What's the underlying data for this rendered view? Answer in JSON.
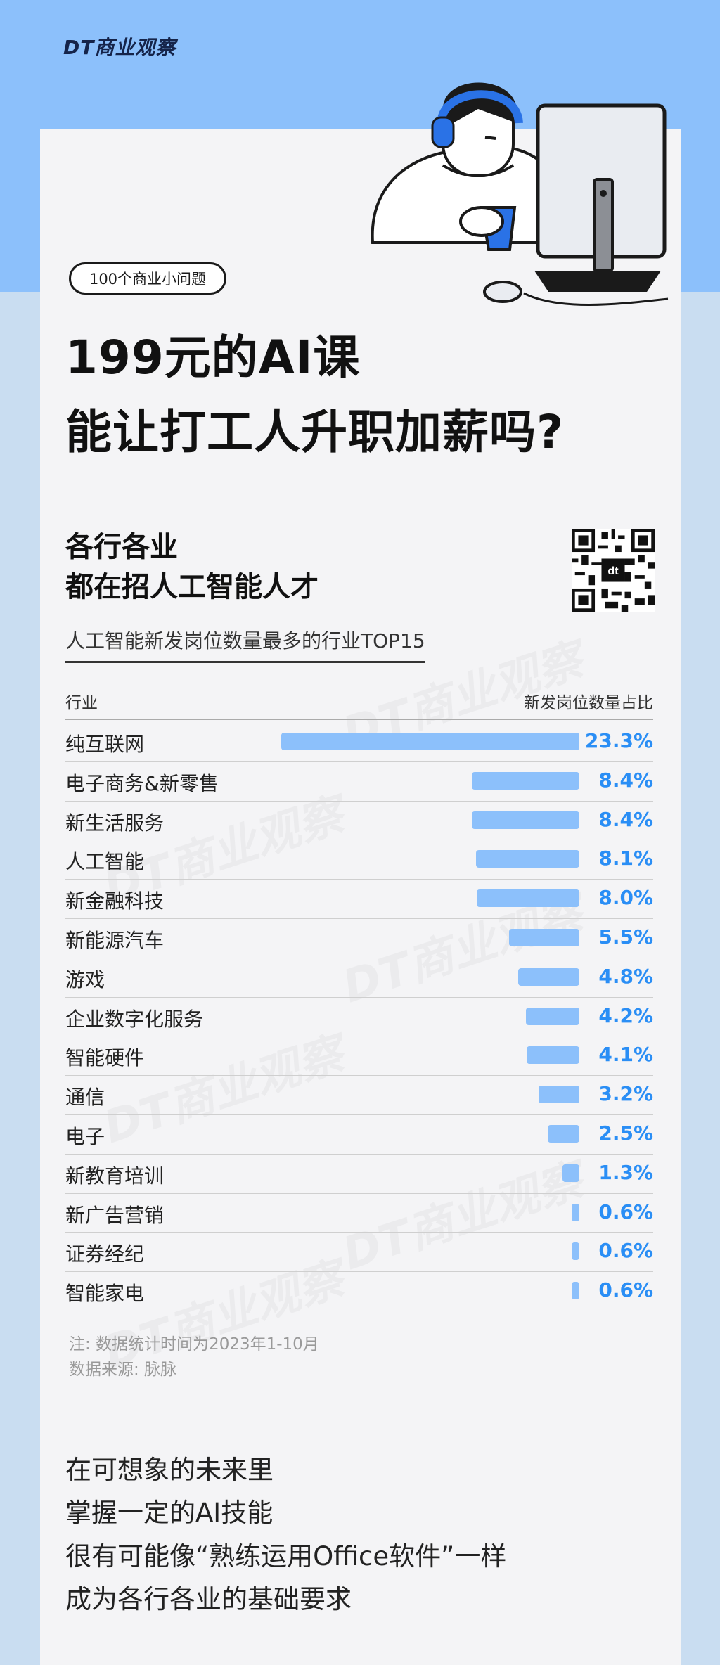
{
  "brand": {
    "logo": "DT商业观察",
    "watermark": "DT商业观察"
  },
  "tag": "100个商业小问题",
  "headline": {
    "line1": "199元的AI课",
    "line2": "能让打工人升职加薪吗?"
  },
  "section": {
    "line1": "各行各业",
    "line2": "都在招人工智能人才",
    "qr_icon": "qr-code-icon"
  },
  "colors": {
    "accent": "#2a8ef5",
    "bar": "#8cc0fb",
    "top_band": "#8cc0fb",
    "background": "#c9ddf1"
  },
  "chart_data": {
    "type": "bar",
    "orientation": "horizontal",
    "title": "人工智能新发岗位数量最多的行业TOP15",
    "xlabel": "新发岗位数量占比",
    "ylabel": "行业",
    "unit": "%",
    "categories": [
      "纯互联网",
      "电子商务&新零售",
      "新生活服务",
      "人工智能",
      "新金融科技",
      "新能源汽车",
      "游戏",
      "企业数字化服务",
      "智能硬件",
      "通信",
      "电子",
      "新教育培训",
      "新广告营销",
      "证券经纪",
      "智能家电"
    ],
    "values": [
      23.3,
      8.4,
      8.4,
      8.1,
      8.0,
      5.5,
      4.8,
      4.2,
      4.1,
      3.2,
      2.5,
      1.3,
      0.6,
      0.6,
      0.6
    ],
    "labels": [
      "23.3%",
      "8.4%",
      "8.4%",
      "8.1%",
      "8.0%",
      "5.5%",
      "4.8%",
      "4.2%",
      "4.1%",
      "3.2%",
      "2.5%",
      "1.3%",
      "0.6%",
      "0.6%",
      "0.6%"
    ],
    "xlim": [
      0,
      23.3
    ],
    "grid": false,
    "legend": "none"
  },
  "notes": {
    "line1": "注: 数据统计时间为2023年1-10月",
    "line2": "数据来源: 脉脉"
  },
  "closing": [
    "在可想象的未来里",
    "掌握一定的AI技能",
    "很有可能像“熟练运用Office软件”一样",
    "成为各行各业的基础要求"
  ]
}
